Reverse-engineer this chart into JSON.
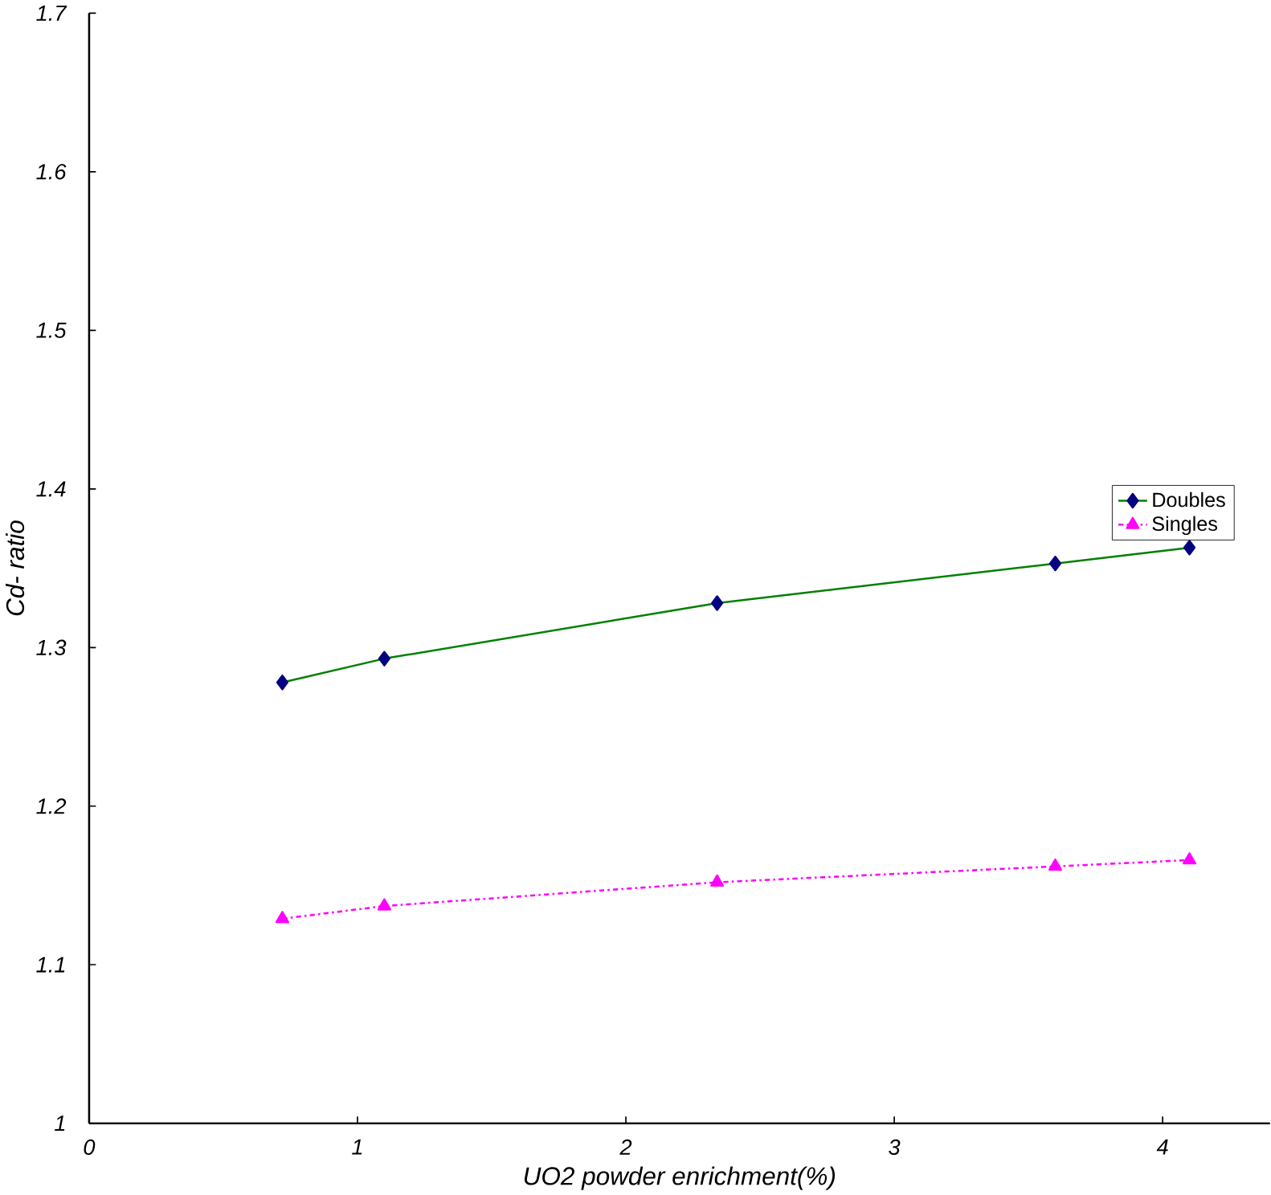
{
  "chart_data": {
    "type": "line",
    "xlabel": "UO2  powder enrichment(%)",
    "ylabel": "Cd- ratio",
    "x": [
      0.72,
      1.1,
      2.34,
      3.6,
      4.1
    ],
    "series": [
      {
        "name": "Doubles",
        "color": "#008000",
        "colors": [
          "#000080",
          "#000080",
          "#000080",
          "#000080",
          "#000080"
        ],
        "marker": "diamond",
        "line_style": "solid",
        "values": [
          1.278,
          1.293,
          1.328,
          1.353,
          1.363
        ]
      },
      {
        "name": "Singles",
        "color": "#ff00ff",
        "marker": "triangle",
        "line_style": "dashdot",
        "values": [
          1.129,
          1.137,
          1.152,
          1.162,
          1.166
        ]
      }
    ],
    "xlim": [
      0,
      4.4
    ],
    "ylim": [
      1,
      1.7
    ],
    "xticks": [
      0,
      1,
      2,
      3,
      4
    ],
    "yticks": [
      1,
      1.1,
      1.2,
      1.3,
      1.4,
      1.5,
      1.6,
      1.7
    ],
    "grid": false,
    "legend": "right"
  }
}
